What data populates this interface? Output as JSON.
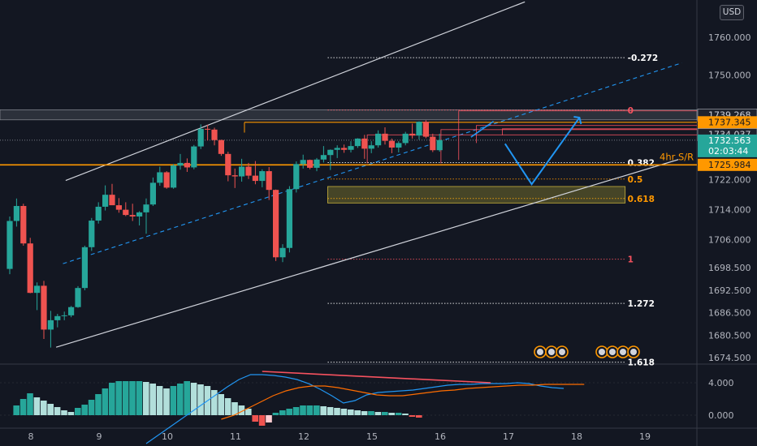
{
  "chart_data": {
    "type": "candlestick",
    "currency_badge": "USD",
    "y_axis": {
      "range": [
        1673,
        1770
      ],
      "tick_labels": [
        "1760.000",
        "1750.000",
        "1722.000",
        "1714.000",
        "1706.000",
        "1698.500",
        "1692.500",
        "1686.500",
        "1680.500",
        "1674.500"
      ],
      "tick_values": [
        1760,
        1750,
        1722,
        1714,
        1706,
        1698.5,
        1692.5,
        1686.5,
        1680.5,
        1674.5
      ]
    },
    "x_axis": {
      "labels": [
        "8",
        "9",
        "10",
        "11",
        "12",
        "15",
        "16",
        "17",
        "18",
        "19"
      ],
      "label_index": [
        0,
        10,
        20,
        30,
        40,
        50,
        60,
        70,
        80,
        90
      ]
    },
    "price_tags": [
      {
        "value": 1739.268,
        "label": "1739.268",
        "style": "line-dark"
      },
      {
        "value": 1737.345,
        "label": "1737.345",
        "style": "orange"
      },
      {
        "value": 1734.037,
        "label": "1734.037",
        "style": "line-dark"
      },
      {
        "value": 1732.563,
        "label": "1732.563",
        "countdown": "02:03:44",
        "style": "teal"
      },
      {
        "value": 1725.984,
        "label": "1725.984",
        "style": "orange"
      }
    ],
    "sr_label": "4hr S/R",
    "fib_levels": [
      {
        "ratio": "-0.272",
        "value": 1754.6,
        "color": "#ffffff"
      },
      {
        "ratio": "0",
        "value": 1740.6,
        "color": "#f7525f"
      },
      {
        "ratio": "0.382",
        "value": 1726.6,
        "color": "#ffffff"
      },
      {
        "ratio": "0.5",
        "value": 1722.2,
        "color": "#ff9800"
      },
      {
        "ratio": "0.618",
        "value": 1717.0,
        "color": "#ff9800"
      },
      {
        "ratio": "1",
        "value": 1700.8,
        "color": "#f7525f"
      },
      {
        "ratio": "1.272",
        "value": 1689.0,
        "color": "#ffffff"
      },
      {
        "ratio": "1.618",
        "value": 1673.3,
        "color": "#ffffff"
      }
    ],
    "candles": [
      [
        1698.2,
        1712.2,
        1696.8,
        1711.0
      ],
      [
        1711.0,
        1717.0,
        1709.5,
        1715.0
      ],
      [
        1715.0,
        1715.6,
        1704.4,
        1705.0
      ],
      [
        1705.0,
        1706.5,
        1691.7,
        1691.8
      ],
      [
        1691.8,
        1694.6,
        1687.2,
        1693.7
      ],
      [
        1693.7,
        1695.0,
        1679.5,
        1682.0
      ],
      [
        1682.0,
        1687.0,
        1677.2,
        1684.5
      ],
      [
        1684.5,
        1686.2,
        1682.6,
        1685.6
      ],
      [
        1685.6,
        1686.8,
        1684.5,
        1685.8
      ],
      [
        1685.8,
        1688.3,
        1685.3,
        1688.0
      ],
      [
        1688.0,
        1693.6,
        1687.8,
        1693.1
      ],
      [
        1693.1,
        1704.4,
        1692.5,
        1704.0
      ],
      [
        1704.0,
        1711.8,
        1703.0,
        1711.1
      ],
      [
        1711.1,
        1716.0,
        1710.3,
        1714.8
      ],
      [
        1714.8,
        1720.5,
        1713.8,
        1718.0
      ],
      [
        1718.0,
        1720.9,
        1715.6,
        1715.2
      ],
      [
        1715.2,
        1717.1,
        1713.2,
        1714.0
      ],
      [
        1714.0,
        1716.0,
        1712.3,
        1712.6
      ],
      [
        1712.6,
        1715.6,
        1711.0,
        1712.2
      ],
      [
        1712.2,
        1713.6,
        1709.8,
        1713.3
      ],
      [
        1713.3,
        1717.0,
        1707.6,
        1715.4
      ],
      [
        1715.4,
        1722.6,
        1715.0,
        1721.2
      ],
      [
        1721.2,
        1725.5,
        1720.4,
        1724.0
      ],
      [
        1724.0,
        1724.3,
        1719.6,
        1719.9
      ],
      [
        1719.9,
        1726.2,
        1719.6,
        1725.8
      ],
      [
        1725.8,
        1728.9,
        1724.7,
        1726.5
      ],
      [
        1726.5,
        1727.7,
        1724.1,
        1725.3
      ],
      [
        1725.3,
        1731.3,
        1724.8,
        1730.9
      ],
      [
        1730.9,
        1736.8,
        1730.2,
        1735.6
      ],
      [
        1735.6,
        1736.7,
        1732.5,
        1735.4
      ],
      [
        1735.4,
        1735.9,
        1731.2,
        1732.6
      ],
      [
        1732.6,
        1732.7,
        1728.4,
        1728.9
      ],
      [
        1728.9,
        1729.5,
        1721.6,
        1723.2
      ],
      [
        1723.2,
        1725.0,
        1719.8,
        1722.9
      ],
      [
        1722.9,
        1727.6,
        1721.5,
        1725.5
      ],
      [
        1725.5,
        1726.5,
        1722.2,
        1723.1
      ],
      [
        1723.1,
        1727.0,
        1720.8,
        1721.7
      ],
      [
        1721.7,
        1724.8,
        1720.0,
        1724.3
      ],
      [
        1724.3,
        1725.4,
        1716.6,
        1719.3
      ],
      [
        1719.3,
        1719.4,
        1700.3,
        1701.3
      ],
      [
        1701.3,
        1704.8,
        1700.0,
        1703.8
      ],
      [
        1703.8,
        1720.3,
        1702.6,
        1719.5
      ],
      [
        1719.5,
        1726.9,
        1718.6,
        1726.2
      ],
      [
        1726.2,
        1728.7,
        1725.0,
        1727.3
      ],
      [
        1727.3,
        1727.4,
        1724.8,
        1725.2
      ],
      [
        1725.2,
        1727.8,
        1724.3,
        1727.4
      ],
      [
        1727.4,
        1731.0,
        1726.6,
        1728.6
      ],
      [
        1728.6,
        1730.1,
        1724.6,
        1730.0
      ],
      [
        1730.0,
        1731.2,
        1727.8,
        1730.5
      ],
      [
        1730.5,
        1731.4,
        1729.2,
        1730.0
      ],
      [
        1730.0,
        1732.3,
        1729.3,
        1731.0
      ],
      [
        1731.0,
        1733.1,
        1730.5,
        1733.0
      ],
      [
        1733.0,
        1734.0,
        1727.6,
        1730.3
      ],
      [
        1730.3,
        1732.3,
        1729.1,
        1731.2
      ],
      [
        1731.2,
        1735.2,
        1730.6,
        1734.3
      ],
      [
        1734.3,
        1736.0,
        1731.4,
        1732.4
      ],
      [
        1732.4,
        1733.0,
        1729.1,
        1730.6
      ],
      [
        1730.6,
        1732.3,
        1729.3,
        1731.8
      ],
      [
        1731.8,
        1734.8,
        1731.2,
        1734.3
      ],
      [
        1734.3,
        1737.0,
        1733.0,
        1733.8
      ],
      [
        1733.8,
        1737.6,
        1732.7,
        1737.5
      ],
      [
        1737.5,
        1737.9,
        1733.1,
        1733.5
      ],
      [
        1733.5,
        1734.3,
        1729.4,
        1729.9
      ],
      [
        1729.9,
        1734.3,
        1729.5,
        1732.6
      ]
    ],
    "oscillator": {
      "tick_labels": [
        "4.000",
        "0.000"
      ],
      "tick_values": [
        4,
        0
      ],
      "range": [
        -1.6,
        6.2
      ],
      "histogram": [
        1.2,
        2.0,
        2.7,
        2.2,
        1.8,
        1.4,
        1.0,
        0.6,
        0.4,
        0.9,
        1.3,
        1.9,
        2.6,
        3.3,
        4.0,
        4.2,
        4.2,
        4.2,
        4.2,
        4.1,
        3.9,
        3.6,
        3.3,
        3.6,
        3.9,
        4.2,
        4.0,
        3.8,
        3.6,
        3.1,
        2.6,
        2.1,
        1.6,
        1.2,
        0.8,
        -0.8,
        -1.3,
        -0.9,
        0.3,
        0.6,
        0.8,
        1.0,
        1.2,
        1.2,
        1.2,
        1.1,
        1.0,
        0.9,
        0.8,
        0.7,
        0.6,
        0.5,
        0.5,
        0.4,
        0.4,
        0.3,
        0.3,
        0.2,
        -0.2,
        -0.3
      ],
      "macd_line": [
        -3.5,
        -2.5,
        -1.5,
        -0.5,
        0.5,
        1.5,
        2.5,
        3.5,
        4.4,
        5.0,
        5.0,
        4.9,
        4.7,
        4.4,
        3.9,
        3.2,
        2.4,
        1.5,
        1.8,
        2.5,
        2.8,
        2.9,
        3.0,
        3.1,
        3.3,
        3.5,
        3.7,
        3.8,
        3.8,
        3.9,
        3.9,
        3.9,
        4.0,
        3.9,
        3.6,
        3.4,
        3.3
      ],
      "signal_line": [
        -0.5,
        0.0,
        0.8,
        1.6,
        2.4,
        3.0,
        3.4,
        3.6,
        3.6,
        3.4,
        3.1,
        2.8,
        2.5,
        2.4,
        2.4,
        2.6,
        2.8,
        3.0,
        3.1,
        3.3,
        3.4,
        3.5,
        3.6,
        3.7,
        3.7,
        3.8,
        3.8,
        3.8,
        3.8
      ],
      "divergence_line": [
        5.4,
        4.0
      ]
    }
  }
}
